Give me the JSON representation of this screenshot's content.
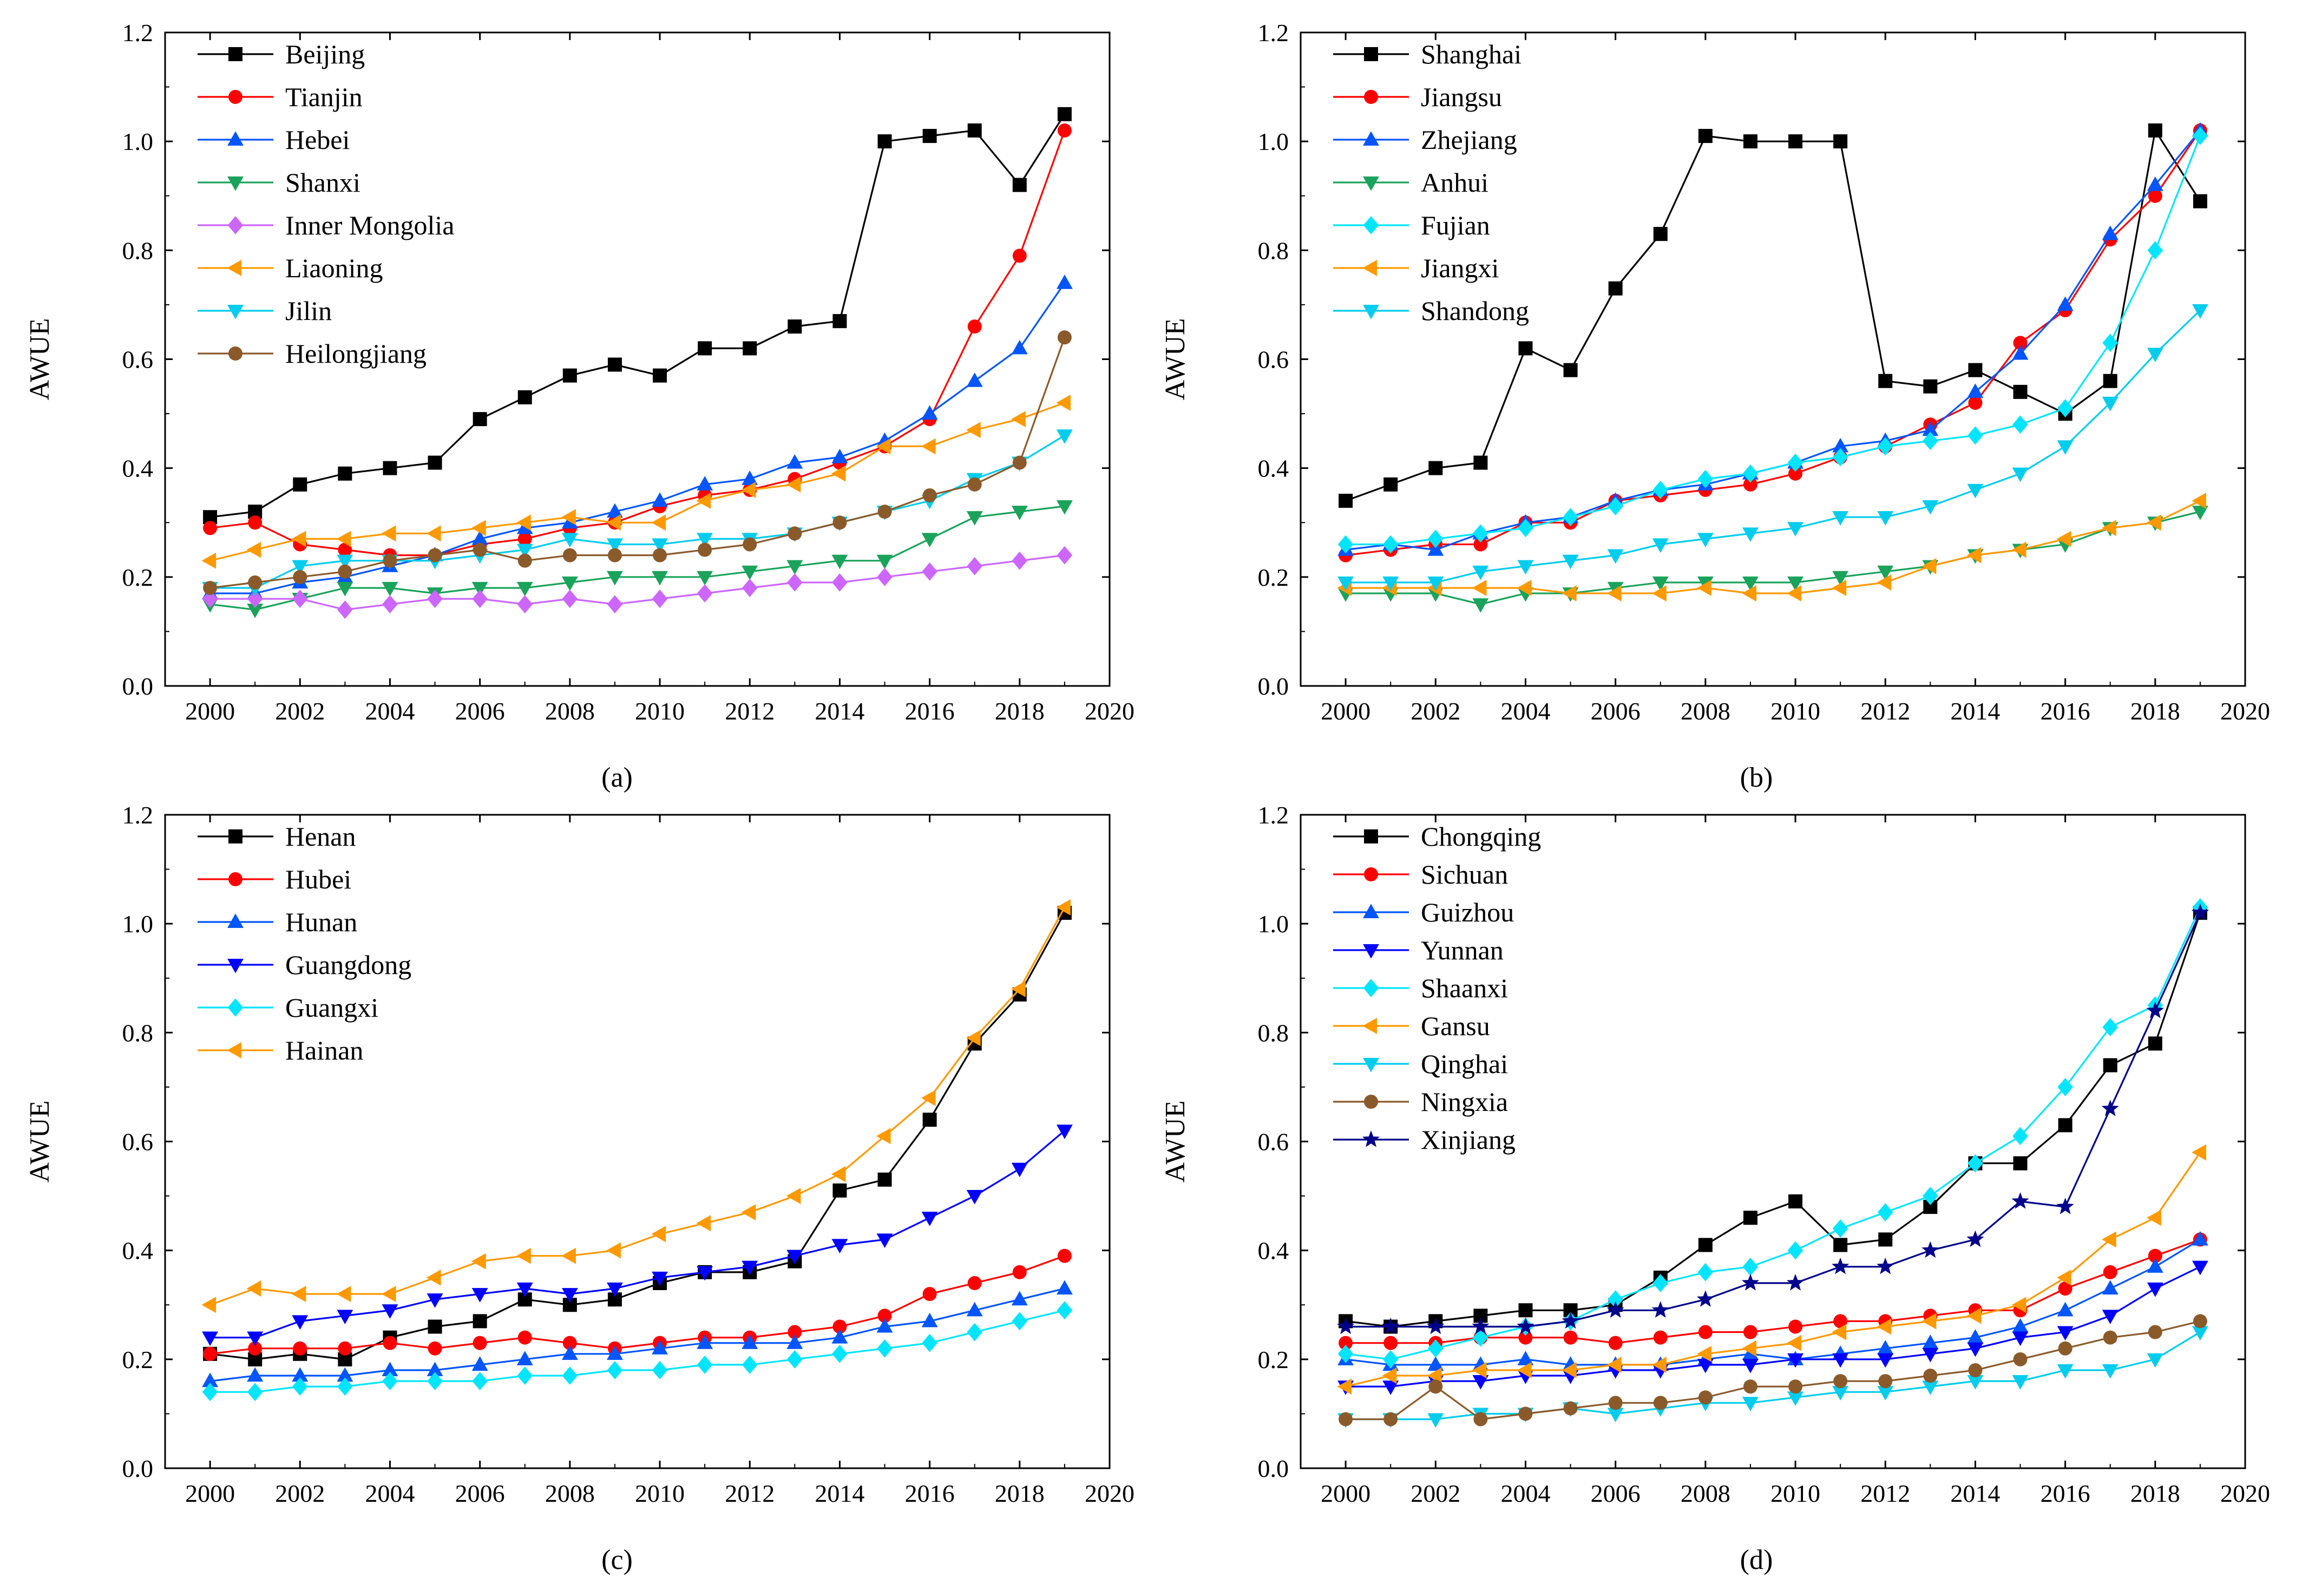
{
  "chart_data": [
    {
      "type": "line",
      "panel_label": "(a)",
      "xlabel": "",
      "ylabel": "AWUE",
      "xlim": [
        1999,
        2020
      ],
      "ylim": [
        0.0,
        1.2
      ],
      "xticks": [
        "2000",
        "2002",
        "2004",
        "2006",
        "2008",
        "2010",
        "2012",
        "2014",
        "2016",
        "2018",
        "2020"
      ],
      "yticks": [
        "0.0",
        "0.2",
        "0.4",
        "0.6",
        "0.8",
        "1.0",
        "1.2"
      ],
      "legend_position": "top-left",
      "x": [
        2000,
        2001,
        2002,
        2003,
        2004,
        2005,
        2006,
        2007,
        2008,
        2009,
        2010,
        2011,
        2012,
        2013,
        2014,
        2015,
        2016,
        2017,
        2018,
        2019
      ],
      "series": [
        {
          "name": "Beijing",
          "color": "#000000",
          "marker": "square",
          "values": [
            0.31,
            0.32,
            0.37,
            0.39,
            0.4,
            0.41,
            0.49,
            0.53,
            0.57,
            0.59,
            0.57,
            0.62,
            0.62,
            0.66,
            0.67,
            1.0,
            1.01,
            1.02,
            0.92,
            1.05
          ]
        },
        {
          "name": "Tianjin",
          "color": "#FF0000",
          "marker": "circle",
          "values": [
            0.29,
            0.3,
            0.26,
            0.25,
            0.24,
            0.24,
            0.26,
            0.27,
            0.29,
            0.3,
            0.33,
            0.35,
            0.36,
            0.38,
            0.41,
            0.44,
            0.49,
            0.66,
            0.79,
            1.02
          ]
        },
        {
          "name": "Hebei",
          "color": "#0055FF",
          "marker": "triangle-up",
          "values": [
            0.17,
            0.17,
            0.19,
            0.2,
            0.22,
            0.24,
            0.27,
            0.29,
            0.3,
            0.32,
            0.34,
            0.37,
            0.38,
            0.41,
            0.42,
            0.45,
            0.5,
            0.56,
            0.62,
            0.74
          ]
        },
        {
          "name": "Shanxi",
          "color": "#1AA35A",
          "marker": "triangle-down",
          "values": [
            0.15,
            0.14,
            0.16,
            0.18,
            0.18,
            0.17,
            0.18,
            0.18,
            0.19,
            0.2,
            0.2,
            0.2,
            0.21,
            0.22,
            0.23,
            0.23,
            0.27,
            0.31,
            0.32,
            0.33
          ]
        },
        {
          "name": "Inner Mongolia",
          "color": "#CC66FF",
          "marker": "diamond",
          "values": [
            0.16,
            0.16,
            0.16,
            0.14,
            0.15,
            0.16,
            0.16,
            0.15,
            0.16,
            0.15,
            0.16,
            0.17,
            0.18,
            0.19,
            0.19,
            0.2,
            0.21,
            0.22,
            0.23,
            0.24
          ]
        },
        {
          "name": "Liaoning",
          "color": "#FF9900",
          "marker": "triangle-left",
          "values": [
            0.23,
            0.25,
            0.27,
            0.27,
            0.28,
            0.28,
            0.29,
            0.3,
            0.31,
            0.3,
            0.3,
            0.34,
            0.36,
            0.37,
            0.39,
            0.44,
            0.44,
            0.47,
            0.49,
            0.52
          ]
        },
        {
          "name": "Jilin",
          "color": "#00CCEE",
          "marker": "triangle-down",
          "values": [
            0.18,
            0.18,
            0.22,
            0.23,
            0.23,
            0.23,
            0.24,
            0.25,
            0.27,
            0.26,
            0.26,
            0.27,
            0.27,
            0.28,
            0.3,
            0.32,
            0.34,
            0.38,
            0.41,
            0.46
          ]
        },
        {
          "name": "Heilongjiang",
          "color": "#8B5A2B",
          "marker": "circle",
          "values": [
            0.18,
            0.19,
            0.2,
            0.21,
            0.23,
            0.24,
            0.25,
            0.23,
            0.24,
            0.24,
            0.24,
            0.25,
            0.26,
            0.28,
            0.3,
            0.32,
            0.35,
            0.37,
            0.41,
            0.64
          ]
        }
      ]
    },
    {
      "type": "line",
      "panel_label": "(b)",
      "xlabel": "",
      "ylabel": "AWUE",
      "xlim": [
        1999,
        2020
      ],
      "ylim": [
        0.0,
        1.2
      ],
      "xticks": [
        "2000",
        "2002",
        "2004",
        "2006",
        "2008",
        "2010",
        "2012",
        "2014",
        "2016",
        "2018",
        "2020"
      ],
      "yticks": [
        "0.0",
        "0.2",
        "0.4",
        "0.6",
        "0.8",
        "1.0",
        "1.2"
      ],
      "legend_position": "top-left",
      "x": [
        2000,
        2001,
        2002,
        2003,
        2004,
        2005,
        2006,
        2007,
        2008,
        2009,
        2010,
        2011,
        2012,
        2013,
        2014,
        2015,
        2016,
        2017,
        2018,
        2019
      ],
      "series": [
        {
          "name": "Shanghai",
          "color": "#000000",
          "marker": "square",
          "values": [
            0.34,
            0.37,
            0.4,
            0.41,
            0.62,
            0.58,
            0.73,
            0.83,
            1.01,
            1.0,
            1.0,
            1.0,
            0.56,
            0.55,
            0.58,
            0.54,
            0.5,
            0.56,
            1.02,
            0.89
          ]
        },
        {
          "name": "Jiangsu",
          "color": "#FF0000",
          "marker": "circle",
          "values": [
            0.24,
            0.25,
            0.26,
            0.26,
            0.3,
            0.3,
            0.34,
            0.35,
            0.36,
            0.37,
            0.39,
            0.42,
            0.44,
            0.48,
            0.52,
            0.63,
            0.69,
            0.82,
            0.9,
            1.02
          ]
        },
        {
          "name": "Zhejiang",
          "color": "#0055FF",
          "marker": "triangle-up",
          "values": [
            0.25,
            0.26,
            0.25,
            0.28,
            0.3,
            0.31,
            0.34,
            0.36,
            0.37,
            0.39,
            0.41,
            0.44,
            0.45,
            0.47,
            0.54,
            0.61,
            0.7,
            0.83,
            0.92,
            1.02
          ]
        },
        {
          "name": "Anhui",
          "color": "#1AA35A",
          "marker": "triangle-down",
          "values": [
            0.17,
            0.17,
            0.17,
            0.15,
            0.17,
            0.17,
            0.18,
            0.19,
            0.19,
            0.19,
            0.19,
            0.2,
            0.21,
            0.22,
            0.24,
            0.25,
            0.26,
            0.29,
            0.3,
            0.32
          ]
        },
        {
          "name": "Fujian",
          "color": "#00E5FF",
          "marker": "diamond",
          "values": [
            0.26,
            0.26,
            0.27,
            0.28,
            0.29,
            0.31,
            0.33,
            0.36,
            0.38,
            0.39,
            0.41,
            0.42,
            0.44,
            0.45,
            0.46,
            0.48,
            0.51,
            0.63,
            0.8,
            1.01
          ]
        },
        {
          "name": "Jiangxi",
          "color": "#FF9900",
          "marker": "triangle-left",
          "values": [
            0.18,
            0.18,
            0.18,
            0.18,
            0.18,
            0.17,
            0.17,
            0.17,
            0.18,
            0.17,
            0.17,
            0.18,
            0.19,
            0.22,
            0.24,
            0.25,
            0.27,
            0.29,
            0.3,
            0.34
          ]
        },
        {
          "name": "Shandong",
          "color": "#00CCEE",
          "marker": "triangle-down",
          "values": [
            0.19,
            0.19,
            0.19,
            0.21,
            0.22,
            0.23,
            0.24,
            0.26,
            0.27,
            0.28,
            0.29,
            0.31,
            0.31,
            0.33,
            0.36,
            0.39,
            0.44,
            0.52,
            0.61,
            0.69
          ]
        }
      ]
    },
    {
      "type": "line",
      "panel_label": "(c)",
      "xlabel": "",
      "ylabel": "AWUE",
      "xlim": [
        1999,
        2020
      ],
      "ylim": [
        0.0,
        1.2
      ],
      "xticks": [
        "2000",
        "2002",
        "2004",
        "2006",
        "2008",
        "2010",
        "2012",
        "2014",
        "2016",
        "2018",
        "2020"
      ],
      "yticks": [
        "0.0",
        "0.2",
        "0.4",
        "0.6",
        "0.8",
        "1.0",
        "1.2"
      ],
      "legend_position": "top-left",
      "x": [
        2000,
        2001,
        2002,
        2003,
        2004,
        2005,
        2006,
        2007,
        2008,
        2009,
        2010,
        2011,
        2012,
        2013,
        2014,
        2015,
        2016,
        2017,
        2018,
        2019
      ],
      "series": [
        {
          "name": "Henan",
          "color": "#000000",
          "marker": "square",
          "values": [
            0.21,
            0.2,
            0.21,
            0.2,
            0.24,
            0.26,
            0.27,
            0.31,
            0.3,
            0.31,
            0.34,
            0.36,
            0.36,
            0.38,
            0.51,
            0.53,
            0.64,
            0.78,
            0.87,
            1.02
          ]
        },
        {
          "name": "Hubei",
          "color": "#FF0000",
          "marker": "circle",
          "values": [
            0.21,
            0.22,
            0.22,
            0.22,
            0.23,
            0.22,
            0.23,
            0.24,
            0.23,
            0.22,
            0.23,
            0.24,
            0.24,
            0.25,
            0.26,
            0.28,
            0.32,
            0.34,
            0.36,
            0.39
          ]
        },
        {
          "name": "Hunan",
          "color": "#0055FF",
          "marker": "triangle-up",
          "values": [
            0.16,
            0.17,
            0.17,
            0.17,
            0.18,
            0.18,
            0.19,
            0.2,
            0.21,
            0.21,
            0.22,
            0.23,
            0.23,
            0.23,
            0.24,
            0.26,
            0.27,
            0.29,
            0.31,
            0.33
          ]
        },
        {
          "name": "Guangdong",
          "color": "#0000FF",
          "marker": "triangle-down",
          "values": [
            0.24,
            0.24,
            0.27,
            0.28,
            0.29,
            0.31,
            0.32,
            0.33,
            0.32,
            0.33,
            0.35,
            0.36,
            0.37,
            0.39,
            0.41,
            0.42,
            0.46,
            0.5,
            0.55,
            0.62
          ]
        },
        {
          "name": "Guangxi",
          "color": "#00E5FF",
          "marker": "diamond",
          "values": [
            0.14,
            0.14,
            0.15,
            0.15,
            0.16,
            0.16,
            0.16,
            0.17,
            0.17,
            0.18,
            0.18,
            0.19,
            0.19,
            0.2,
            0.21,
            0.22,
            0.23,
            0.25,
            0.27,
            0.29
          ]
        },
        {
          "name": "Hainan",
          "color": "#FF9900",
          "marker": "triangle-left",
          "values": [
            0.3,
            0.33,
            0.32,
            0.32,
            0.32,
            0.35,
            0.38,
            0.39,
            0.39,
            0.4,
            0.43,
            0.45,
            0.47,
            0.5,
            0.54,
            0.61,
            0.68,
            0.79,
            0.88,
            1.03
          ]
        }
      ]
    },
    {
      "type": "line",
      "panel_label": "(d)",
      "xlabel": "",
      "ylabel": "AWUE",
      "xlim": [
        1999,
        2020
      ],
      "ylim": [
        0.0,
        1.2
      ],
      "xticks": [
        "2000",
        "2002",
        "2004",
        "2006",
        "2008",
        "2010",
        "2012",
        "2014",
        "2016",
        "2018",
        "2020"
      ],
      "yticks": [
        "0.0",
        "0.2",
        "0.4",
        "0.6",
        "0.8",
        "1.0",
        "1.2"
      ],
      "legend_position": "top-left",
      "x": [
        2000,
        2001,
        2002,
        2003,
        2004,
        2005,
        2006,
        2007,
        2008,
        2009,
        2010,
        2011,
        2012,
        2013,
        2014,
        2015,
        2016,
        2017,
        2018,
        2019
      ],
      "series": [
        {
          "name": "Chongqing",
          "color": "#000000",
          "marker": "square",
          "values": [
            0.27,
            0.26,
            0.27,
            0.28,
            0.29,
            0.29,
            0.3,
            0.35,
            0.41,
            0.46,
            0.49,
            0.41,
            0.42,
            0.48,
            0.56,
            0.56,
            0.63,
            0.74,
            0.78,
            1.02
          ]
        },
        {
          "name": "Sichuan",
          "color": "#FF0000",
          "marker": "circle",
          "values": [
            0.23,
            0.23,
            0.23,
            0.24,
            0.24,
            0.24,
            0.23,
            0.24,
            0.25,
            0.25,
            0.26,
            0.27,
            0.27,
            0.28,
            0.29,
            0.29,
            0.33,
            0.36,
            0.39,
            0.42
          ]
        },
        {
          "name": "Guizhou",
          "color": "#0055FF",
          "marker": "triangle-up",
          "values": [
            0.2,
            0.19,
            0.19,
            0.19,
            0.2,
            0.19,
            0.19,
            0.19,
            0.2,
            0.21,
            0.2,
            0.21,
            0.22,
            0.23,
            0.24,
            0.26,
            0.29,
            0.33,
            0.37,
            0.42
          ]
        },
        {
          "name": "Yunnan",
          "color": "#0000FF",
          "marker": "triangle-down",
          "values": [
            0.15,
            0.15,
            0.16,
            0.16,
            0.17,
            0.17,
            0.18,
            0.18,
            0.19,
            0.19,
            0.2,
            0.2,
            0.2,
            0.21,
            0.22,
            0.24,
            0.25,
            0.28,
            0.33,
            0.37
          ]
        },
        {
          "name": "Shaanxi",
          "color": "#00E5FF",
          "marker": "diamond",
          "values": [
            0.21,
            0.2,
            0.22,
            0.24,
            0.26,
            0.27,
            0.31,
            0.34,
            0.36,
            0.37,
            0.4,
            0.44,
            0.47,
            0.5,
            0.56,
            0.61,
            0.7,
            0.81,
            0.85,
            1.03
          ]
        },
        {
          "name": "Gansu",
          "color": "#FF9900",
          "marker": "triangle-left",
          "values": [
            0.15,
            0.17,
            0.17,
            0.18,
            0.18,
            0.18,
            0.19,
            0.19,
            0.21,
            0.22,
            0.23,
            0.25,
            0.26,
            0.27,
            0.28,
            0.3,
            0.35,
            0.42,
            0.46,
            0.58
          ]
        },
        {
          "name": "Qinghai",
          "color": "#00CCEE",
          "marker": "triangle-down",
          "values": [
            0.09,
            0.09,
            0.09,
            0.1,
            0.1,
            0.11,
            0.1,
            0.11,
            0.12,
            0.12,
            0.13,
            0.14,
            0.14,
            0.15,
            0.16,
            0.16,
            0.18,
            0.18,
            0.2,
            0.25
          ]
        },
        {
          "name": "Ningxia",
          "color": "#8B5A2B",
          "marker": "circle",
          "values": [
            0.09,
            0.09,
            0.15,
            0.09,
            0.1,
            0.11,
            0.12,
            0.12,
            0.13,
            0.15,
            0.15,
            0.16,
            0.16,
            0.17,
            0.18,
            0.2,
            0.22,
            0.24,
            0.25,
            0.27
          ]
        },
        {
          "name": "Xinjiang",
          "color": "#00008B",
          "marker": "star",
          "values": [
            0.26,
            0.26,
            0.26,
            0.26,
            0.26,
            0.27,
            0.29,
            0.29,
            0.31,
            0.34,
            0.34,
            0.37,
            0.37,
            0.4,
            0.42,
            0.49,
            0.48,
            0.66,
            0.84,
            1.02
          ]
        }
      ]
    }
  ]
}
